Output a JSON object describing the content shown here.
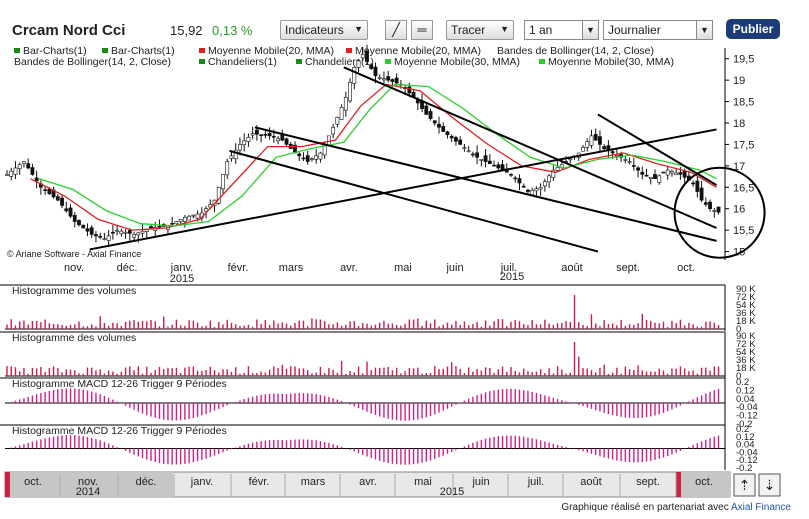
{
  "toolbar": {
    "stock_name": "Crcam Nord Cci",
    "price": "15,92",
    "change": "0,13 %",
    "indicators_label": "Indicateurs",
    "draw_label": "Tracer",
    "period": "1 an",
    "frequency": "Journalier",
    "publish_label": "Publier"
  },
  "legend": {
    "row1": [
      {
        "label": "Bar-Charts(1)",
        "color": "#1a8a1a"
      },
      {
        "label": "Bar-Charts(1)",
        "color": "#1a8a1a"
      },
      {
        "label": "Moyenne Mobile(20, MMA)",
        "color": "#e02020"
      },
      {
        "label": "Moyenne Mobile(20, MMA)",
        "color": "#e02020"
      },
      {
        "label": "Bandes de Bollinger(14, 2, Close)",
        "color": ""
      }
    ],
    "row2": [
      {
        "label": "Bandes de Bollinger(14, 2, Close)",
        "color": ""
      },
      {
        "label": "Chandeliers(1)",
        "color": "#1a8a1a"
      },
      {
        "label": "Chandeliers(1)",
        "color": "#1a8a1a"
      },
      {
        "label": "Moyenne Mobile(30, MMA)",
        "color": "#2ad02a"
      },
      {
        "label": "Moyenne Mobile(30, MMA)",
        "color": "#2ad02a"
      }
    ]
  },
  "copyright": "© Ariane Software - Axial Finance",
  "chart_data": [
    {
      "type": "candlestick",
      "x_months": [
        "nov.",
        "déc.",
        "janv.",
        "févr.",
        "mars",
        "avr.",
        "mai",
        "juin",
        "juil.",
        "août",
        "sept.",
        "oct."
      ],
      "x_year_labels": [
        {
          "after": "janv.",
          "year": "2015"
        },
        {
          "after": "juil.",
          "year": "2015"
        }
      ],
      "y_ticks": [
        15,
        15.5,
        16,
        16.5,
        17,
        17.5,
        18,
        18.5,
        19,
        19.5
      ],
      "ylim": [
        14.85,
        19.75
      ],
      "price_path": [
        [
          0,
          16.8
        ],
        [
          4,
          17.1
        ],
        [
          8,
          16.5
        ],
        [
          12,
          16.2
        ],
        [
          16,
          15.7
        ],
        [
          20,
          15.4
        ],
        [
          23,
          15.3
        ],
        [
          26,
          15.5
        ],
        [
          30,
          15.4
        ],
        [
          34,
          15.55
        ],
        [
          38,
          15.6
        ],
        [
          42,
          15.8
        ],
        [
          46,
          15.9
        ],
        [
          49,
          16.2
        ],
        [
          52,
          17.1
        ],
        [
          55,
          17.5
        ],
        [
          58,
          17.75
        ],
        [
          62,
          17.7
        ],
        [
          65,
          17.6
        ],
        [
          68,
          17.3
        ],
        [
          71,
          17.1
        ],
        [
          74,
          17.3
        ],
        [
          77,
          17.9
        ],
        [
          80,
          18.6
        ],
        [
          82,
          19.3
        ],
        [
          84,
          19.6
        ],
        [
          87,
          19.1
        ],
        [
          90,
          19.0
        ],
        [
          93,
          18.9
        ],
        [
          96,
          18.6
        ],
        [
          99,
          18.2
        ],
        [
          103,
          17.8
        ],
        [
          107,
          17.5
        ],
        [
          111,
          17.2
        ],
        [
          115,
          17.0
        ],
        [
          119,
          16.8
        ],
        [
          123,
          16.4
        ],
        [
          126,
          16.5
        ],
        [
          129,
          16.9
        ],
        [
          132,
          17.1
        ],
        [
          135,
          17.3
        ],
        [
          138,
          17.7
        ],
        [
          141,
          17.4
        ],
        [
          144,
          17.25
        ],
        [
          147,
          17.1
        ],
        [
          150,
          16.8
        ],
        [
          153,
          16.7
        ],
        [
          156,
          16.9
        ],
        [
          159,
          16.8
        ],
        [
          162,
          16.6
        ],
        [
          164,
          16.2
        ],
        [
          166,
          16.0
        ],
        [
          168,
          15.92
        ]
      ],
      "ma20": [
        [
          6,
          16.7
        ],
        [
          14,
          16.3
        ],
        [
          22,
          15.75
        ],
        [
          30,
          15.5
        ],
        [
          38,
          15.55
        ],
        [
          46,
          15.75
        ],
        [
          54,
          16.6
        ],
        [
          62,
          17.45
        ],
        [
          70,
          17.45
        ],
        [
          78,
          17.6
        ],
        [
          84,
          18.4
        ],
        [
          90,
          18.9
        ],
        [
          98,
          18.75
        ],
        [
          106,
          18.1
        ],
        [
          114,
          17.5
        ],
        [
          122,
          17.0
        ],
        [
          130,
          16.85
        ],
        [
          138,
          17.15
        ],
        [
          146,
          17.3
        ],
        [
          154,
          17.05
        ],
        [
          162,
          16.85
        ],
        [
          168,
          16.5
        ]
      ],
      "ma30": [
        [
          8,
          16.7
        ],
        [
          16,
          16.45
        ],
        [
          24,
          15.95
        ],
        [
          32,
          15.65
        ],
        [
          40,
          15.6
        ],
        [
          48,
          15.7
        ],
        [
          56,
          16.3
        ],
        [
          64,
          17.2
        ],
        [
          72,
          17.4
        ],
        [
          80,
          17.55
        ],
        [
          86,
          18.3
        ],
        [
          92,
          18.9
        ],
        [
          100,
          18.85
        ],
        [
          108,
          18.35
        ],
        [
          116,
          17.75
        ],
        [
          124,
          17.2
        ],
        [
          132,
          16.95
        ],
        [
          140,
          17.15
        ],
        [
          148,
          17.25
        ],
        [
          156,
          17.1
        ],
        [
          164,
          16.9
        ],
        [
          168,
          16.7
        ]
      ],
      "trendlines": [
        [
          [
            20,
            15.05
          ],
          [
            168,
            17.85
          ]
        ],
        [
          [
            53,
            17.35
          ],
          [
            140,
            15.0
          ]
        ],
        [
          [
            59,
            17.9
          ],
          [
            168,
            15.25
          ]
        ],
        [
          [
            80,
            19.3
          ],
          [
            168,
            15.55
          ]
        ],
        [
          [
            140,
            18.2
          ],
          [
            168,
            16.55
          ]
        ]
      ],
      "highlight_circle": {
        "x": 164,
        "y": 16.0
      }
    },
    {
      "type": "bar",
      "title": "Histogramme des volumes",
      "y_ticks": [
        "90 K",
        "72 K",
        "54 K",
        "36 K",
        "18 K",
        "0"
      ],
      "ylim": [
        0,
        90000
      ]
    },
    {
      "type": "bar",
      "title": "Histogramme des volumes",
      "y_ticks": [
        "90 K",
        "72 K",
        "54 K",
        "36 K",
        "18 K",
        "0"
      ],
      "ylim": [
        0,
        90000
      ]
    },
    {
      "type": "bar",
      "title": "Histogramme MACD 12-26   Trigger 9 Périodes",
      "y_ticks": [
        "0.2",
        "0.12",
        "0.04",
        "-0.04",
        "-0.12",
        "-0.2"
      ],
      "ylim": [
        -0.2,
        0.2
      ]
    },
    {
      "type": "bar",
      "title": "Histogramme MACD 12-26   Trigger 9 Périodes",
      "y_ticks": [
        "0.2",
        "0.12",
        "0.04",
        "-0.04",
        "-0.12",
        "-0.2"
      ],
      "ylim": [
        -0.2,
        0.2
      ]
    }
  ],
  "navigator": {
    "months": [
      "oct.",
      "nov.",
      "déc.",
      "janv.",
      "févr.",
      "mars",
      "avr.",
      "mai",
      "juin",
      "juil.",
      "août",
      "sept.",
      "oct."
    ],
    "year_2014": "2014",
    "year_2015": "2015"
  },
  "footer": {
    "credit": "Graphique réalisé en partenariat avec",
    "link": "Axial Finance"
  }
}
